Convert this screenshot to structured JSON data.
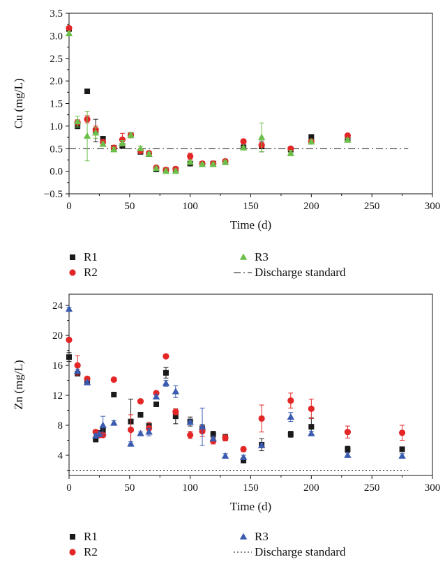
{
  "colors": {
    "R1": "#1a1a1a",
    "R2": "#e32626",
    "R3_cu": "#6cc04a",
    "R3_zn": "#3a5bb0",
    "axis": "#111111"
  },
  "chart_data": [
    {
      "type": "scatter",
      "title": "",
      "xlabel": "Time (d)",
      "ylabel": "Cu (mg/L)",
      "xlim": [
        0,
        300
      ],
      "ylim": [
        -0.5,
        3.5
      ],
      "xticks": [
        "0",
        "50",
        "100",
        "150",
        "200",
        "250",
        "300"
      ],
      "yticks": [
        "−0.5",
        "0.0",
        "0.5",
        "1.0",
        "1.5",
        "2.0",
        "2.5",
        "3.0",
        "3.5"
      ],
      "legend": {
        "placement": "bottom",
        "items": [
          "R1",
          "R2",
          "R3",
          "Discharge standard"
        ]
      },
      "discharge_standard": {
        "name": "Discharge standard",
        "value": 0.5,
        "style": "dash-dot"
      },
      "series": [
        {
          "name": "R1",
          "marker": "square",
          "x": [
            0,
            7,
            15,
            22,
            28,
            37,
            44,
            51,
            59,
            66,
            72,
            80,
            88,
            100,
            110,
            119,
            129,
            144,
            159,
            183,
            200,
            230
          ],
          "y": [
            3.15,
            1.0,
            1.77,
            0.9,
            0.72,
            0.52,
            0.56,
            0.8,
            0.43,
            0.38,
            0.04,
            0.02,
            0.04,
            0.17,
            0.16,
            0.17,
            0.2,
            0.53,
            0.55,
            0.48,
            0.76,
            0.7
          ],
          "err": [
            0.04,
            0.06,
            0,
            0.25,
            0.05,
            0.05,
            0.05,
            0.05,
            0.05,
            0.04,
            0.03,
            0.03,
            0.03,
            0.04,
            0.03,
            0.03,
            0.03,
            0.03,
            0.12,
            0.04,
            0.04,
            0.04
          ]
        },
        {
          "name": "R2",
          "marker": "circle",
          "x": [
            0,
            7,
            15,
            22,
            28,
            37,
            44,
            51,
            59,
            66,
            72,
            80,
            88,
            100,
            110,
            119,
            129,
            144,
            159,
            183,
            200,
            230
          ],
          "y": [
            3.17,
            1.08,
            1.15,
            0.92,
            0.65,
            0.52,
            0.7,
            0.8,
            0.45,
            0.4,
            0.08,
            0.03,
            0.05,
            0.33,
            0.17,
            0.17,
            0.22,
            0.66,
            0.58,
            0.5,
            0.66,
            0.79
          ],
          "err": [
            0.04,
            0.06,
            0.08,
            0.08,
            0.05,
            0.05,
            0.14,
            0.06,
            0.05,
            0.04,
            0.03,
            0.03,
            0.03,
            0.07,
            0.03,
            0.03,
            0.03,
            0.05,
            0.05,
            0.04,
            0.04,
            0.04
          ]
        },
        {
          "name": "R3",
          "marker": "triangle",
          "x": [
            0,
            7,
            15,
            22,
            28,
            37,
            44,
            51,
            59,
            66,
            72,
            80,
            88,
            100,
            110,
            119,
            129,
            144,
            159,
            183,
            200,
            230
          ],
          "y": [
            3.05,
            1.1,
            0.78,
            0.85,
            0.6,
            0.48,
            0.62,
            0.8,
            0.5,
            0.38,
            0.06,
            0.0,
            0.0,
            0.2,
            0.15,
            0.15,
            0.2,
            0.52,
            0.75,
            0.4,
            0.65,
            0.69
          ],
          "err": [
            0.04,
            0.12,
            0.55,
            0.12,
            0.05,
            0.05,
            0.06,
            0.06,
            0.05,
            0.04,
            0.03,
            0.05,
            0.05,
            0.03,
            0.03,
            0.03,
            0.03,
            0.03,
            0.32,
            0.06,
            0.04,
            0.04
          ]
        }
      ]
    },
    {
      "type": "scatter",
      "title": "",
      "xlabel": "Time (d)",
      "ylabel": "Zn (mg/L)",
      "xlim": [
        0,
        300
      ],
      "ylim": [
        1.3,
        25.5
      ],
      "xticks": [
        "0",
        "50",
        "100",
        "150",
        "200",
        "250",
        "300"
      ],
      "yticks": [
        "4",
        "8",
        "12",
        "16",
        "20",
        "24"
      ],
      "legend": {
        "placement": "bottom",
        "items": [
          "R1",
          "R2",
          "R3",
          "Discharge standard"
        ]
      },
      "discharge_standard": {
        "name": "Discharge standard",
        "value": 2,
        "style": "dotted"
      },
      "series": [
        {
          "name": "R1",
          "marker": "square",
          "x": [
            0,
            7,
            15,
            22,
            25,
            28,
            37,
            51,
            59,
            66,
            72,
            80,
            88,
            100,
            110,
            119,
            129,
            144,
            159,
            183,
            200,
            230,
            275
          ],
          "y": [
            17.1,
            14.9,
            13.9,
            6.1,
            6.9,
            7.3,
            12.1,
            8.5,
            9.4,
            7.9,
            10.8,
            15.0,
            9.2,
            8.5,
            7.6,
            6.8,
            6.4,
            3.3,
            5.4,
            6.8,
            7.8,
            4.8,
            4.8
          ],
          "err": [
            0.6,
            0.3,
            0.4,
            0.3,
            0.4,
            0.4,
            0.3,
            3.0,
            0.3,
            0.5,
            0.3,
            0.7,
            1.0,
            0.6,
            0.5,
            0.4,
            0.4,
            0.3,
            0.8,
            0.4,
            1.2,
            0.4,
            0.3
          ]
        },
        {
          "name": "R2",
          "marker": "circle",
          "x": [
            0,
            7,
            15,
            22,
            25,
            28,
            37,
            51,
            59,
            66,
            72,
            80,
            88,
            100,
            110,
            119,
            129,
            144,
            159,
            183,
            200,
            230,
            275
          ],
          "y": [
            19.4,
            16.0,
            14.2,
            7.1,
            6.7,
            6.7,
            14.1,
            7.4,
            11.2,
            7.6,
            12.3,
            17.2,
            9.8,
            6.7,
            7.2,
            5.9,
            6.3,
            4.8,
            8.9,
            11.3,
            10.2,
            7.1,
            7.0
          ],
          "err": [
            0.2,
            1.3,
            0.3,
            0.3,
            0.3,
            0.3,
            0.2,
            2.0,
            0.2,
            0.8,
            0.2,
            0.2,
            0.4,
            0.5,
            0.7,
            0.4,
            0.4,
            0.3,
            1.8,
            1.0,
            1.3,
            0.8,
            1.0
          ]
        },
        {
          "name": "R3",
          "marker": "triangle",
          "x": [
            0,
            7,
            15,
            22,
            25,
            28,
            37,
            51,
            59,
            66,
            72,
            80,
            88,
            100,
            110,
            119,
            129,
            144,
            159,
            183,
            200,
            230,
            275
          ],
          "y": [
            23.5,
            15.2,
            13.7,
            6.6,
            6.8,
            8.0,
            8.3,
            5.5,
            6.9,
            7.1,
            11.8,
            13.6,
            12.5,
            8.4,
            7.8,
            6.2,
            3.9,
            3.7,
            5.3,
            9.1,
            6.9,
            4.0,
            3.9
          ],
          "err": [
            0.2,
            0.3,
            0.3,
            0.3,
            0.3,
            1.2,
            0.3,
            0.3,
            0.2,
            0.5,
            0.3,
            0.4,
            0.8,
            0.3,
            2.5,
            0.3,
            0.3,
            0.3,
            0.3,
            0.6,
            0.3,
            0.3,
            0.3
          ]
        }
      ]
    }
  ]
}
